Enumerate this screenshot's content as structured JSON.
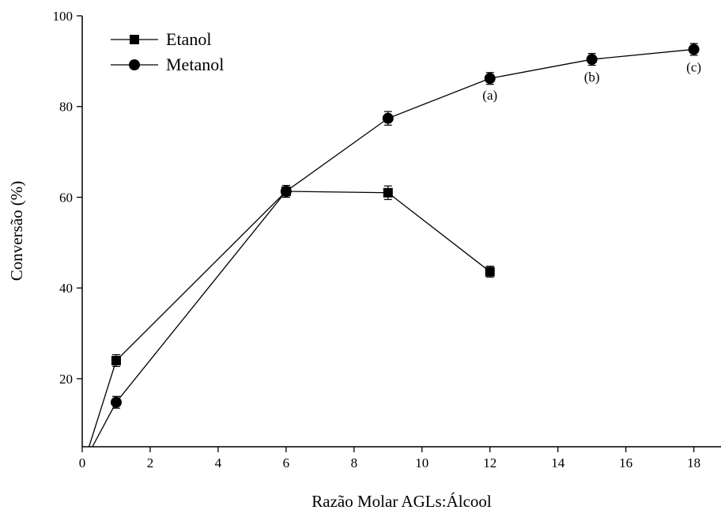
{
  "chart_data": {
    "type": "line",
    "title": "",
    "xlabel": "Razão Molar AGLs:Álcool",
    "ylabel": "Conversão (%)",
    "xlim": [
      0,
      18.8
    ],
    "ylim": [
      5,
      100
    ],
    "xticks": [
      0,
      2,
      4,
      6,
      8,
      10,
      12,
      14,
      16,
      18
    ],
    "yticks": [
      20,
      40,
      60,
      80,
      100
    ],
    "grid": false,
    "legend": {
      "position": "top-left"
    },
    "series": [
      {
        "name": "Etanol",
        "marker": "square",
        "points": [
          {
            "x": 0.2,
            "y": 5,
            "err": 0
          },
          {
            "x": 1,
            "y": 24,
            "err": 1.3
          },
          {
            "x": 6,
            "y": 61.3,
            "err": 1.3
          },
          {
            "x": 9,
            "y": 61,
            "err": 1.5
          },
          {
            "x": 12,
            "y": 43.6,
            "err": 1.2
          }
        ]
      },
      {
        "name": "Metanol",
        "marker": "circle",
        "points": [
          {
            "x": 0.3,
            "y": 5,
            "err": 0
          },
          {
            "x": 1,
            "y": 14.8,
            "err": 1.3
          },
          {
            "x": 6,
            "y": 61.3,
            "err": 1.3
          },
          {
            "x": 9,
            "y": 77.4,
            "err": 1.5
          },
          {
            "x": 12,
            "y": 86.2,
            "err": 1.3
          },
          {
            "x": 15,
            "y": 90.4,
            "err": 1.3
          },
          {
            "x": 18,
            "y": 92.6,
            "err": 1.3
          }
        ]
      }
    ],
    "annotations": [
      {
        "text": "(a)",
        "x": 12,
        "y": 81.5
      },
      {
        "text": "(b)",
        "x": 15,
        "y": 85.5
      },
      {
        "text": "(c)",
        "x": 18,
        "y": 87.7
      }
    ]
  }
}
